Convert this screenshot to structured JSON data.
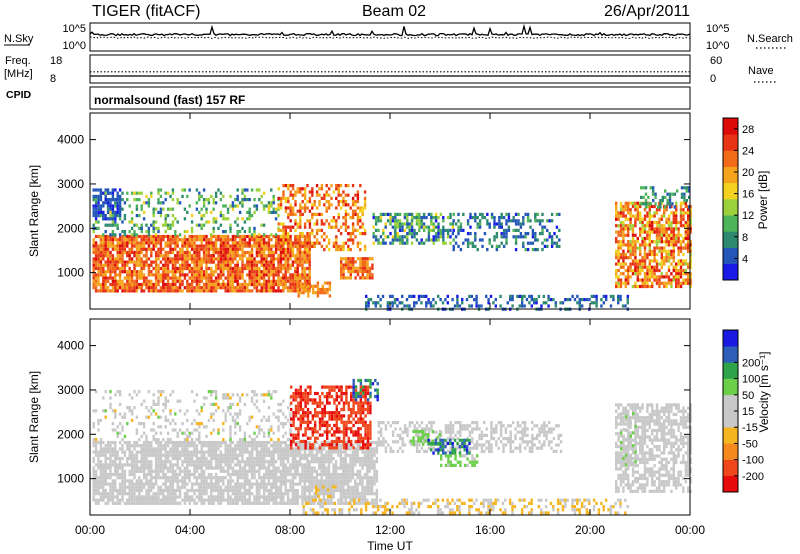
{
  "header": {
    "radar": "TIGER (fitACF)",
    "beam": "Beam 02",
    "date": "26/Apr/2011"
  },
  "chart_data": [
    {
      "type": "line",
      "panel": "noise",
      "left_labels": [
        "N.Sky"
      ],
      "right_labels": [
        "N.Search"
      ],
      "left_ticks": [
        "10^5",
        "10^0"
      ],
      "right_ticks": [
        "10^5",
        "10^0"
      ],
      "x_range_hours": [
        0,
        24
      ],
      "series": [
        {
          "name": "N.Sky",
          "style": "solid",
          "level_fraction_of_axis": [
            0.55,
            0.62
          ]
        },
        {
          "name": "N.Search",
          "style": "dotted",
          "level_fraction_of_axis": [
            0.45,
            0.5
          ]
        }
      ]
    },
    {
      "type": "line",
      "panel": "frequency",
      "left_labels": [
        "Freq.",
        "[MHz]",
        "CPID"
      ],
      "right_labels": [
        "Nave"
      ],
      "left_ticks": [
        "18",
        "8"
      ],
      "right_ticks": [
        "60",
        "0"
      ],
      "series": [
        {
          "name": "Freq.",
          "style": "dotted",
          "approx_value_MHz": 12
        },
        {
          "name": "Nave",
          "style": "solid",
          "approx_value": 15
        }
      ]
    },
    {
      "type": "table",
      "panel": "cpid",
      "text": "normalsound (fast) 157 RF"
    },
    {
      "type": "heatmap",
      "panel": "power",
      "ylabel": "Slant Range [km]",
      "y_ticks": [
        "1000",
        "2000",
        "3000",
        "4000"
      ],
      "y_values": [
        1000,
        2000,
        3000,
        4000
      ],
      "ylim": [
        180,
        4600
      ],
      "x_range_hours": [
        0,
        24
      ],
      "colorbar": {
        "label": "Power [dB]",
        "ticks": [
          "4",
          "8",
          "12",
          "16",
          "20",
          "24",
          "28"
        ],
        "range": [
          0,
          30
        ],
        "colors": [
          "#1a1ae6",
          "#2356b8",
          "#2e8a6e",
          "#4fb35a",
          "#9bd13a",
          "#f2d21e",
          "#f5a21c",
          "#f06a18",
          "#e83414",
          "#dd0a0a"
        ]
      },
      "echo_regions": [
        {
          "t0": 0.1,
          "t1": 8.8,
          "r0": 600,
          "r1": 1850,
          "v0": 18,
          "v1": 28,
          "d": 0.85
        },
        {
          "t0": 0.1,
          "t1": 7.5,
          "r0": 1850,
          "r1": 2900,
          "v0": 4,
          "v1": 16,
          "d": 0.3
        },
        {
          "t0": 0.1,
          "t1": 1.2,
          "r0": 2200,
          "r1": 2900,
          "v0": 2,
          "v1": 6,
          "d": 0.7
        },
        {
          "t0": 7.5,
          "t1": 11.0,
          "r0": 1500,
          "r1": 3000,
          "v0": 16,
          "v1": 28,
          "d": 0.45
        },
        {
          "t0": 8.3,
          "t1": 9.6,
          "r0": 500,
          "r1": 800,
          "v0": 18,
          "v1": 24,
          "d": 0.6
        },
        {
          "t0": 10.0,
          "t1": 11.3,
          "r0": 850,
          "r1": 1350,
          "v0": 18,
          "v1": 26,
          "d": 0.75
        },
        {
          "t0": 11.3,
          "t1": 14.5,
          "r0": 1700,
          "r1": 2350,
          "v0": 2,
          "v1": 16,
          "d": 0.55
        },
        {
          "t0": 14.5,
          "t1": 18.8,
          "r0": 1500,
          "r1": 2350,
          "v0": 2,
          "v1": 10,
          "d": 0.35
        },
        {
          "t0": 11.0,
          "t1": 21.5,
          "r0": 200,
          "r1": 500,
          "v0": 2,
          "v1": 8,
          "d": 0.35
        },
        {
          "t0": 21.0,
          "t1": 24.0,
          "r0": 700,
          "r1": 2600,
          "v0": 14,
          "v1": 28,
          "d": 0.7
        },
        {
          "t0": 22.0,
          "t1": 24.0,
          "r0": 2500,
          "r1": 2950,
          "v0": 4,
          "v1": 12,
          "d": 0.4
        }
      ]
    },
    {
      "type": "heatmap",
      "panel": "velocity",
      "ylabel": "Slant Range [km]",
      "xlabel": "Time UT",
      "y_ticks": [
        "1000",
        "2000",
        "3000",
        "4000"
      ],
      "y_values": [
        1000,
        2000,
        3000,
        4000
      ],
      "ylim": [
        180,
        4600
      ],
      "x_ticks": [
        "00:00",
        "04:00",
        "08:00",
        "12:00",
        "16:00",
        "20:00",
        "00:00"
      ],
      "x_values": [
        0,
        4,
        8,
        12,
        16,
        20,
        24
      ],
      "x_range_hours": [
        0,
        24
      ],
      "colorbar": {
        "label": "Velocity [m s⁻¹]",
        "ticks": [
          "-200",
          "-100",
          "-50",
          "-15",
          "15",
          "50",
          "100",
          "200"
        ],
        "range": [
          -250,
          250
        ],
        "colors": [
          "#e60a0a",
          "#f0461c",
          "#f5891e",
          "#f5b520",
          "#c8c8c8",
          "#c8c8c8",
          "#6ccf4a",
          "#2ea34a",
          "#2e5fb8",
          "#1a1ae0"
        ]
      },
      "echo_regions": [
        {
          "t0": 0.1,
          "t1": 11.5,
          "r0": 450,
          "r1": 1850,
          "v0": -10,
          "v1": 10,
          "d": 0.8
        },
        {
          "t0": 0.1,
          "t1": 8.0,
          "r0": 1850,
          "r1": 3000,
          "v0": -60,
          "v1": 60,
          "d": 0.25
        },
        {
          "t0": 8.0,
          "t1": 11.2,
          "r0": 1700,
          "r1": 3100,
          "v0": -230,
          "v1": -150,
          "d": 0.6
        },
        {
          "t0": 10.5,
          "t1": 11.5,
          "r0": 2800,
          "r1": 3250,
          "v0": 100,
          "v1": 220,
          "d": 0.45
        },
        {
          "t0": 11.5,
          "t1": 18.8,
          "r0": 1600,
          "r1": 2300,
          "v0": -10,
          "v1": 10,
          "d": 0.45
        },
        {
          "t0": 12.8,
          "t1": 14.0,
          "r0": 1750,
          "r1": 2100,
          "v0": 40,
          "v1": 80,
          "d": 0.7
        },
        {
          "t0": 13.5,
          "t1": 15.2,
          "r0": 1550,
          "r1": 1900,
          "v0": 100,
          "v1": 220,
          "d": 0.6
        },
        {
          "t0": 14.0,
          "t1": 15.5,
          "r0": 1300,
          "r1": 1550,
          "v0": 40,
          "v1": 90,
          "d": 0.6
        },
        {
          "t0": 8.5,
          "t1": 21.5,
          "r0": 200,
          "r1": 550,
          "v0": -80,
          "v1": -20,
          "d": 0.4
        },
        {
          "t0": 9.0,
          "t1": 9.8,
          "r0": 600,
          "r1": 850,
          "v0": -70,
          "v1": -30,
          "d": 0.6
        },
        {
          "t0": 21.0,
          "t1": 24.0,
          "r0": 700,
          "r1": 2700,
          "v0": -10,
          "v1": 10,
          "d": 0.65
        },
        {
          "t0": 21.2,
          "t1": 21.8,
          "r0": 1300,
          "r1": 2500,
          "v0": 20,
          "v1": 60,
          "d": 0.5
        }
      ]
    }
  ]
}
